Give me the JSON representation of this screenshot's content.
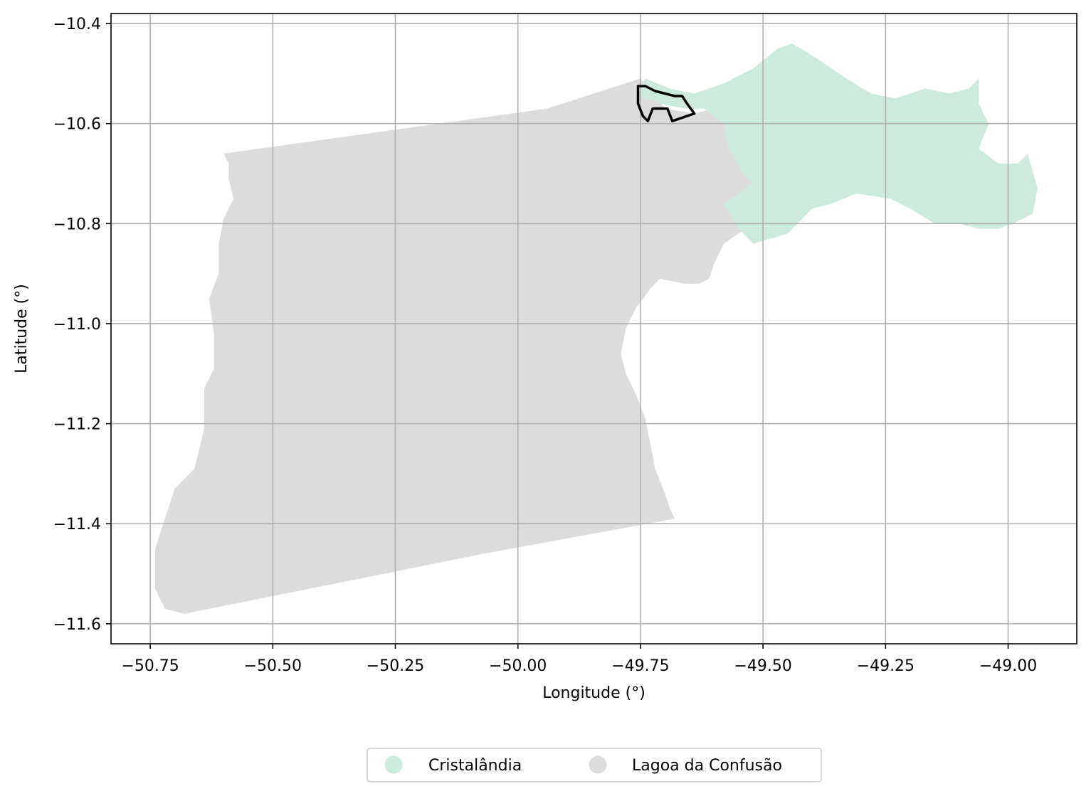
{
  "chart_data": {
    "type": "map",
    "xlabel": "Longitude (°)",
    "ylabel": "Latitude (°)",
    "xlim": [
      -50.83,
      -48.86
    ],
    "ylim": [
      -11.64,
      -10.38
    ],
    "x_ticks": [
      -50.75,
      -50.5,
      -50.25,
      -50.0,
      -49.75,
      -49.5,
      -49.25,
      -49.0
    ],
    "x_tick_labels": [
      "−50.75",
      "−50.50",
      "−50.25",
      "−50.00",
      "−49.75",
      "−49.50",
      "−49.25",
      "−49.00"
    ],
    "y_ticks": [
      -10.4,
      -10.6,
      -10.8,
      -11.0,
      -11.2,
      -11.4,
      -11.6
    ],
    "y_tick_labels": [
      "−10.4",
      "−10.6",
      "−10.8",
      "−11.0",
      "−11.2",
      "−11.4",
      "−11.6"
    ],
    "grid": true,
    "legend_position": "bottom-center",
    "regions": [
      {
        "name": "Cristalândia",
        "color": "#cdebdd",
        "boundary": [
          [
            -49.74,
            -10.51
          ],
          [
            -49.69,
            -10.53
          ],
          [
            -49.64,
            -10.54
          ],
          [
            -49.58,
            -10.52
          ],
          [
            -49.52,
            -10.49
          ],
          [
            -49.47,
            -10.45
          ],
          [
            -49.44,
            -10.44
          ],
          [
            -49.39,
            -10.47
          ],
          [
            -49.33,
            -10.51
          ],
          [
            -49.28,
            -10.54
          ],
          [
            -49.23,
            -10.55
          ],
          [
            -49.17,
            -10.53
          ],
          [
            -49.12,
            -10.54
          ],
          [
            -49.08,
            -10.53
          ],
          [
            -49.06,
            -10.51
          ],
          [
            -49.06,
            -10.56
          ],
          [
            -49.04,
            -10.6
          ],
          [
            -49.06,
            -10.65
          ],
          [
            -49.02,
            -10.68
          ],
          [
            -48.98,
            -10.68
          ],
          [
            -48.96,
            -10.66
          ],
          [
            -48.94,
            -10.73
          ],
          [
            -48.95,
            -10.78
          ],
          [
            -48.99,
            -10.8
          ],
          [
            -49.02,
            -10.81
          ],
          [
            -49.06,
            -10.81
          ],
          [
            -49.1,
            -10.8
          ],
          [
            -49.15,
            -10.8
          ],
          [
            -49.2,
            -10.77
          ],
          [
            -49.24,
            -10.75
          ],
          [
            -49.31,
            -10.74
          ],
          [
            -49.36,
            -10.76
          ],
          [
            -49.4,
            -10.77
          ],
          [
            -49.45,
            -10.82
          ],
          [
            -49.52,
            -10.84
          ],
          [
            -49.55,
            -10.81
          ],
          [
            -49.58,
            -10.76
          ],
          [
            -49.52,
            -10.72
          ],
          [
            -49.54,
            -10.7
          ],
          [
            -49.57,
            -10.65
          ],
          [
            -49.58,
            -10.6
          ],
          [
            -49.62,
            -10.57
          ],
          [
            -49.66,
            -10.57
          ],
          [
            -49.71,
            -10.56
          ],
          [
            -49.76,
            -10.54
          ]
        ]
      },
      {
        "name": "Lagoa da Confusão",
        "color": "#dcdcdc",
        "boundary": [
          [
            -50.6,
            -10.66
          ],
          [
            -49.94,
            -10.57
          ],
          [
            -49.75,
            -10.51
          ],
          [
            -49.7,
            -10.57
          ],
          [
            -49.64,
            -10.58
          ],
          [
            -49.6,
            -10.57
          ],
          [
            -49.57,
            -10.59
          ],
          [
            -49.57,
            -10.63
          ],
          [
            -49.55,
            -10.66
          ],
          [
            -49.53,
            -10.68
          ],
          [
            -49.5,
            -10.7
          ],
          [
            -49.48,
            -10.72
          ],
          [
            -49.49,
            -10.74
          ],
          [
            -49.5,
            -10.77
          ],
          [
            -49.52,
            -10.8
          ],
          [
            -49.55,
            -10.82
          ],
          [
            -49.58,
            -10.84
          ],
          [
            -49.59,
            -10.86
          ],
          [
            -49.6,
            -10.88
          ],
          [
            -49.61,
            -10.91
          ],
          [
            -49.63,
            -10.92
          ],
          [
            -49.66,
            -10.92
          ],
          [
            -49.71,
            -10.91
          ],
          [
            -49.73,
            -10.93
          ],
          [
            -49.76,
            -10.97
          ],
          [
            -49.78,
            -11.01
          ],
          [
            -49.79,
            -11.06
          ],
          [
            -49.78,
            -11.1
          ],
          [
            -49.76,
            -11.14
          ],
          [
            -49.74,
            -11.19
          ],
          [
            -49.73,
            -11.24
          ],
          [
            -49.72,
            -11.29
          ],
          [
            -49.7,
            -11.34
          ],
          [
            -49.69,
            -11.37
          ],
          [
            -49.68,
            -11.39
          ],
          [
            -50.07,
            -11.46
          ],
          [
            -50.68,
            -11.58
          ],
          [
            -50.72,
            -11.57
          ],
          [
            -50.74,
            -11.53
          ],
          [
            -50.74,
            -11.45
          ],
          [
            -50.72,
            -11.39
          ],
          [
            -50.7,
            -11.33
          ],
          [
            -50.66,
            -11.29
          ],
          [
            -50.64,
            -11.21
          ],
          [
            -50.64,
            -11.13
          ],
          [
            -50.62,
            -11.09
          ],
          [
            -50.62,
            -11.02
          ],
          [
            -50.63,
            -10.95
          ],
          [
            -50.61,
            -10.9
          ],
          [
            -50.61,
            -10.84
          ],
          [
            -50.6,
            -10.79
          ],
          [
            -50.58,
            -10.75
          ],
          [
            -50.59,
            -10.71
          ],
          [
            -50.59,
            -10.68
          ]
        ]
      }
    ],
    "highlight_outline": {
      "color": "#000000",
      "boundary": [
        [
          -49.755,
          -10.525
        ],
        [
          -49.74,
          -10.525
        ],
        [
          -49.72,
          -10.535
        ],
        [
          -49.7,
          -10.54
        ],
        [
          -49.68,
          -10.545
        ],
        [
          -49.665,
          -10.545
        ],
        [
          -49.655,
          -10.56
        ],
        [
          -49.64,
          -10.58
        ],
        [
          -49.685,
          -10.595
        ],
        [
          -49.695,
          -10.57
        ],
        [
          -49.725,
          -10.57
        ],
        [
          -49.735,
          -10.595
        ],
        [
          -49.745,
          -10.585
        ],
        [
          -49.755,
          -10.56
        ]
      ]
    },
    "legend": [
      {
        "label": "Cristalândia",
        "color": "#cdebdd"
      },
      {
        "label": "Lagoa da Confusão",
        "color": "#dcdcdc"
      }
    ]
  }
}
